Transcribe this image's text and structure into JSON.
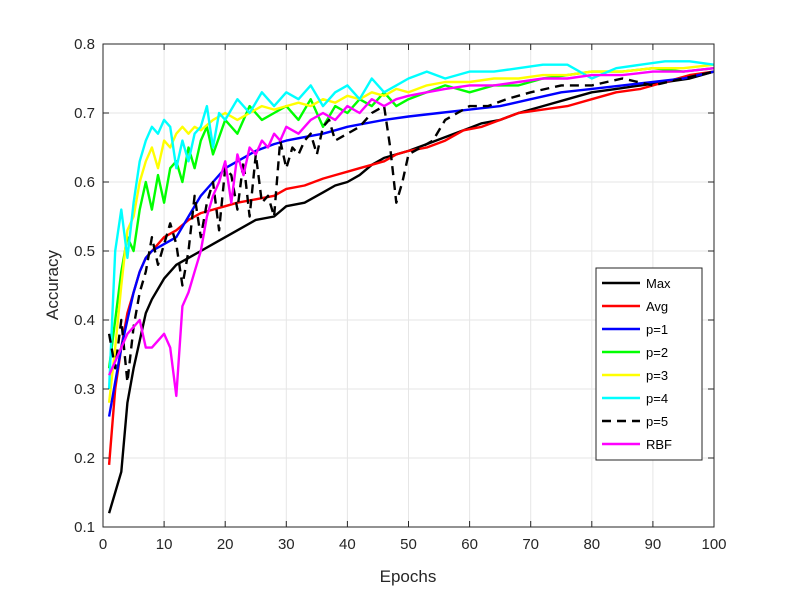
{
  "chart_data": {
    "type": "line",
    "title": "",
    "xlabel": "Epochs",
    "ylabel": "Accuracy",
    "xlim": [
      0,
      100
    ],
    "ylim": [
      0.1,
      0.8
    ],
    "grid": true,
    "legend_position": "right-middle",
    "xticks": [
      {
        "value": 0,
        "label": "0"
      },
      {
        "value": 10,
        "label": "10"
      },
      {
        "value": 20,
        "label": "20"
      },
      {
        "value": 30,
        "label": "30"
      },
      {
        "value": 40,
        "label": "40"
      },
      {
        "value": 50,
        "label": "50"
      },
      {
        "value": 60,
        "label": "60"
      },
      {
        "value": 70,
        "label": "70"
      },
      {
        "value": 80,
        "label": "80"
      },
      {
        "value": 90,
        "label": "90"
      },
      {
        "value": 100,
        "label": "100"
      }
    ],
    "yticks": [
      {
        "value": 0.1,
        "label": "0.1"
      },
      {
        "value": 0.2,
        "label": "0.2"
      },
      {
        "value": 0.3,
        "label": "0.3"
      },
      {
        "value": 0.4,
        "label": "0.4"
      },
      {
        "value": 0.5,
        "label": "0.5"
      },
      {
        "value": 0.6,
        "label": "0.6"
      },
      {
        "value": 0.7,
        "label": "0.7"
      },
      {
        "value": 0.8,
        "label": "0.8"
      }
    ],
    "series": [
      {
        "name": "Max",
        "color": "#000000",
        "dash": "solid",
        "x": [
          1,
          2,
          3,
          4,
          5,
          6,
          7,
          8,
          10,
          12,
          14,
          16,
          18,
          20,
          22,
          25,
          28,
          30,
          33,
          36,
          38,
          40,
          42,
          44,
          46,
          48,
          50,
          53,
          56,
          59,
          62,
          65,
          68,
          72,
          76,
          80,
          84,
          88,
          92,
          96,
          100
        ],
        "y": [
          0.12,
          0.15,
          0.18,
          0.28,
          0.33,
          0.37,
          0.41,
          0.43,
          0.46,
          0.48,
          0.49,
          0.5,
          0.51,
          0.52,
          0.53,
          0.545,
          0.55,
          0.565,
          0.57,
          0.585,
          0.595,
          0.6,
          0.61,
          0.625,
          0.635,
          0.64,
          0.645,
          0.655,
          0.665,
          0.675,
          0.685,
          0.69,
          0.7,
          0.71,
          0.72,
          0.73,
          0.735,
          0.74,
          0.745,
          0.75,
          0.76
        ]
      },
      {
        "name": "Avg",
        "color": "#ff0000",
        "dash": "solid",
        "x": [
          1,
          2,
          3,
          4,
          5,
          6,
          7,
          8,
          10,
          12,
          14,
          16,
          18,
          20,
          22,
          25,
          28,
          30,
          33,
          36,
          38,
          40,
          42,
          44,
          46,
          48,
          50,
          53,
          56,
          59,
          62,
          65,
          68,
          72,
          76,
          80,
          84,
          88,
          92,
          96,
          100
        ],
        "y": [
          0.19,
          0.3,
          0.36,
          0.41,
          0.44,
          0.47,
          0.49,
          0.5,
          0.52,
          0.53,
          0.545,
          0.555,
          0.56,
          0.565,
          0.57,
          0.575,
          0.58,
          0.59,
          0.595,
          0.605,
          0.61,
          0.615,
          0.62,
          0.625,
          0.63,
          0.64,
          0.645,
          0.65,
          0.66,
          0.675,
          0.68,
          0.69,
          0.7,
          0.705,
          0.71,
          0.72,
          0.73,
          0.735,
          0.745,
          0.755,
          0.76
        ]
      },
      {
        "name": "p=1",
        "color": "#0000ff",
        "dash": "solid",
        "x": [
          1,
          2,
          3,
          4,
          5,
          6,
          7,
          8,
          10,
          12,
          14,
          16,
          18,
          20,
          22,
          25,
          28,
          30,
          33,
          36,
          38,
          40,
          43,
          46,
          50,
          55,
          60,
          65,
          70,
          75,
          80,
          85,
          90,
          95,
          100
        ],
        "y": [
          0.26,
          0.31,
          0.36,
          0.4,
          0.44,
          0.47,
          0.49,
          0.5,
          0.51,
          0.52,
          0.55,
          0.58,
          0.6,
          0.62,
          0.63,
          0.645,
          0.655,
          0.66,
          0.665,
          0.67,
          0.675,
          0.68,
          0.685,
          0.69,
          0.695,
          0.7,
          0.705,
          0.71,
          0.72,
          0.73,
          0.735,
          0.74,
          0.745,
          0.75,
          0.76
        ]
      },
      {
        "name": "p=2",
        "color": "#00ff00",
        "dash": "solid",
        "x": [
          1,
          2,
          3,
          4,
          5,
          6,
          7,
          8,
          9,
          10,
          11,
          12,
          13,
          14,
          15,
          16,
          17,
          18,
          20,
          22,
          24,
          26,
          28,
          30,
          32,
          34,
          36,
          38,
          40,
          42,
          44,
          46,
          48,
          50,
          53,
          56,
          60,
          64,
          68,
          72,
          76,
          80,
          85,
          90,
          95,
          100
        ],
        "y": [
          0.33,
          0.4,
          0.47,
          0.52,
          0.5,
          0.56,
          0.6,
          0.56,
          0.61,
          0.57,
          0.62,
          0.63,
          0.6,
          0.65,
          0.62,
          0.66,
          0.68,
          0.64,
          0.69,
          0.67,
          0.71,
          0.69,
          0.7,
          0.71,
          0.69,
          0.72,
          0.68,
          0.71,
          0.7,
          0.72,
          0.71,
          0.73,
          0.71,
          0.72,
          0.73,
          0.74,
          0.73,
          0.74,
          0.74,
          0.75,
          0.755,
          0.76,
          0.76,
          0.765,
          0.76,
          0.765
        ]
      },
      {
        "name": "p=3",
        "color": "#ffff00",
        "dash": "solid",
        "x": [
          1,
          2,
          3,
          4,
          5,
          6,
          7,
          8,
          9,
          10,
          11,
          12,
          13,
          14,
          15,
          16,
          18,
          20,
          22,
          24,
          26,
          28,
          30,
          32,
          34,
          36,
          38,
          40,
          42,
          44,
          46,
          48,
          50,
          53,
          56,
          60,
          64,
          68,
          72,
          76,
          80,
          85,
          90,
          95,
          100
        ],
        "y": [
          0.28,
          0.36,
          0.45,
          0.53,
          0.55,
          0.6,
          0.63,
          0.65,
          0.62,
          0.66,
          0.65,
          0.67,
          0.68,
          0.67,
          0.68,
          0.675,
          0.69,
          0.7,
          0.69,
          0.7,
          0.71,
          0.705,
          0.71,
          0.715,
          0.71,
          0.72,
          0.715,
          0.725,
          0.72,
          0.73,
          0.725,
          0.735,
          0.73,
          0.74,
          0.745,
          0.745,
          0.75,
          0.75,
          0.755,
          0.755,
          0.76,
          0.76,
          0.765,
          0.765,
          0.77
        ]
      },
      {
        "name": "p=4",
        "color": "#00ffff",
        "dash": "solid",
        "x": [
          1,
          2,
          3,
          4,
          5,
          6,
          7,
          8,
          9,
          10,
          11,
          12,
          13,
          14,
          15,
          16,
          17,
          18,
          19,
          20,
          22,
          24,
          26,
          28,
          30,
          32,
          34,
          36,
          38,
          40,
          42,
          44,
          46,
          48,
          50,
          53,
          56,
          60,
          64,
          68,
          72,
          76,
          80,
          84,
          88,
          92,
          96,
          100
        ],
        "y": [
          0.3,
          0.5,
          0.56,
          0.49,
          0.57,
          0.63,
          0.66,
          0.68,
          0.67,
          0.69,
          0.68,
          0.62,
          0.66,
          0.63,
          0.67,
          0.68,
          0.71,
          0.65,
          0.7,
          0.69,
          0.72,
          0.7,
          0.73,
          0.71,
          0.73,
          0.72,
          0.74,
          0.71,
          0.73,
          0.74,
          0.72,
          0.75,
          0.73,
          0.74,
          0.75,
          0.76,
          0.75,
          0.76,
          0.76,
          0.765,
          0.77,
          0.77,
          0.75,
          0.765,
          0.77,
          0.775,
          0.775,
          0.77
        ]
      },
      {
        "name": "p=5",
        "color": "#000000",
        "dash": "dashed",
        "x": [
          1,
          2,
          3,
          4,
          5,
          6,
          7,
          8,
          9,
          10,
          11,
          12,
          13,
          14,
          15,
          16,
          17,
          18,
          19,
          20,
          21,
          22,
          23,
          24,
          25,
          26,
          27,
          28,
          29,
          30,
          31,
          32,
          33,
          34,
          35,
          36,
          37,
          38,
          40,
          42,
          44,
          46,
          47,
          48,
          49,
          50,
          52,
          54,
          56,
          58,
          60,
          63,
          66,
          70,
          75,
          80,
          85,
          90,
          95,
          100
        ],
        "y": [
          0.38,
          0.33,
          0.4,
          0.31,
          0.39,
          0.44,
          0.47,
          0.52,
          0.48,
          0.51,
          0.54,
          0.51,
          0.45,
          0.5,
          0.58,
          0.52,
          0.57,
          0.6,
          0.53,
          0.62,
          0.61,
          0.56,
          0.63,
          0.55,
          0.64,
          0.57,
          0.58,
          0.55,
          0.66,
          0.62,
          0.65,
          0.64,
          0.66,
          0.67,
          0.64,
          0.68,
          0.69,
          0.66,
          0.67,
          0.68,
          0.7,
          0.71,
          0.65,
          0.57,
          0.6,
          0.64,
          0.65,
          0.66,
          0.69,
          0.7,
          0.71,
          0.71,
          0.72,
          0.73,
          0.74,
          0.74,
          0.75,
          0.74,
          0.75,
          0.76
        ]
      },
      {
        "name": "RBF",
        "color": "#ff00ff",
        "dash": "solid",
        "x": [
          1,
          2,
          3,
          4,
          5,
          6,
          7,
          8,
          9,
          10,
          11,
          12,
          13,
          14,
          15,
          16,
          17,
          18,
          19,
          20,
          21,
          22,
          23,
          24,
          25,
          26,
          27,
          28,
          29,
          30,
          32,
          34,
          36,
          38,
          40,
          42,
          44,
          46,
          48,
          50,
          53,
          56,
          60,
          64,
          68,
          72,
          76,
          80,
          85,
          90,
          95,
          100
        ],
        "y": [
          0.32,
          0.34,
          0.36,
          0.38,
          0.39,
          0.4,
          0.36,
          0.36,
          0.37,
          0.38,
          0.36,
          0.29,
          0.42,
          0.44,
          0.47,
          0.5,
          0.55,
          0.58,
          0.6,
          0.63,
          0.57,
          0.64,
          0.61,
          0.65,
          0.64,
          0.66,
          0.65,
          0.67,
          0.66,
          0.68,
          0.67,
          0.69,
          0.7,
          0.69,
          0.71,
          0.7,
          0.72,
          0.71,
          0.72,
          0.725,
          0.73,
          0.735,
          0.74,
          0.74,
          0.745,
          0.75,
          0.75,
          0.755,
          0.755,
          0.76,
          0.76,
          0.765
        ]
      }
    ]
  }
}
